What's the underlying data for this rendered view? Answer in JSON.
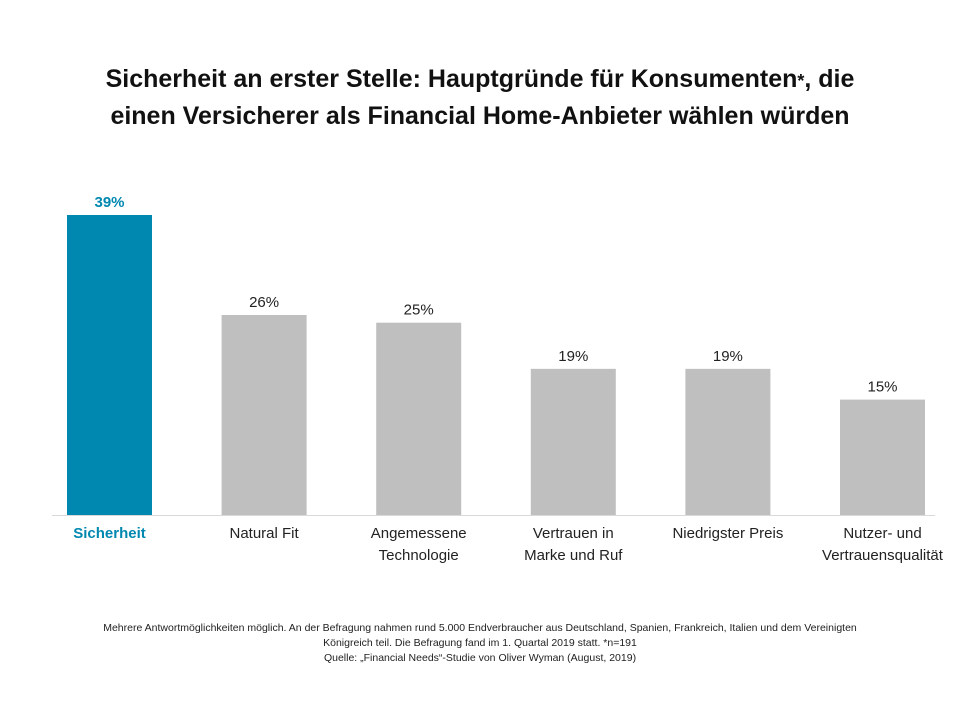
{
  "title": {
    "line1_before": "Sicherheit an erster Stelle: Hauptgründe für Konsumenten",
    "asterisk": "*",
    "line1_after": ", die",
    "line2": "einen Versicherer als Financial Home-Anbieter wählen würden"
  },
  "chart_data": {
    "type": "bar",
    "categories": [
      "Sicherheit",
      "Natural Fit",
      "Angemessene Technologie",
      "Vertrauen in Marke und Ruf",
      "Niedrigster Preis",
      "Nutzer- und Vertrauensqualität"
    ],
    "category_lines": [
      [
        "Sicherheit"
      ],
      [
        "Natural Fit"
      ],
      [
        "Angemessene",
        "Technologie"
      ],
      [
        "Vertrauen in",
        "Marke und Ruf"
      ],
      [
        "Niedrigster Preis"
      ],
      [
        "Nutzer- und",
        "Vertrauensqualität"
      ]
    ],
    "values": [
      39,
      26,
      25,
      19,
      19,
      15
    ],
    "value_labels": [
      "39%",
      "26%",
      "25%",
      "19%",
      "19%",
      "15%"
    ],
    "highlight_index": 0,
    "colors": {
      "highlight": "#0088b0",
      "default": "#bfbfbf",
      "axis": "#d9d9d9",
      "label": "#222222"
    },
    "ylim": [
      0,
      39
    ],
    "grid": false,
    "legend": "none"
  },
  "footnote": {
    "line1": "Mehrere Antwortmöglichkeiten möglich. An der Befragung nahmen rund 5.000 Endverbraucher aus Deutschland, Spanien, Frankreich, Italien und dem Vereinigten",
    "line2": "Königreich teil. Die Befragung fand im 1. Quartal 2019 statt. *n=191",
    "line3": "Quelle: „Financial Needs“-Studie von Oliver Wyman (August, 2019)"
  }
}
